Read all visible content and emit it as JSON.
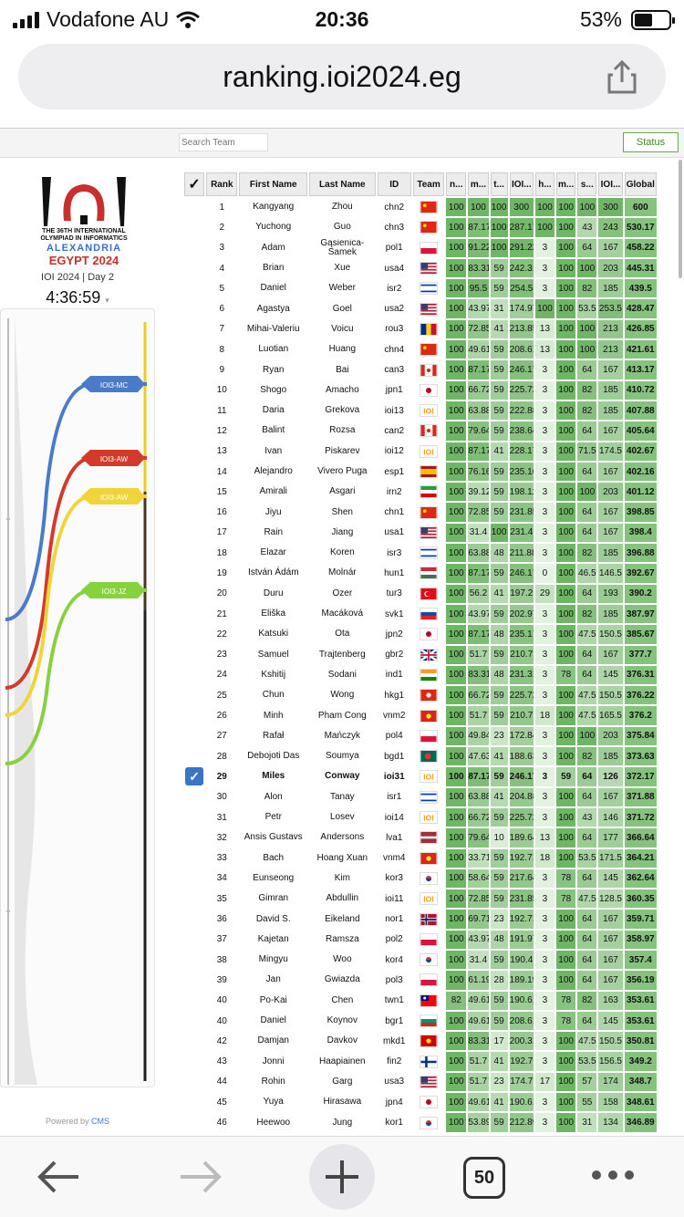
{
  "status_bar": {
    "carrier": "Vodafone AU",
    "time": "20:36",
    "battery": "53%"
  },
  "browser": {
    "url": "ranking.ioi2024.eg",
    "tab_count": "50"
  },
  "toolbar": {
    "search_placeholder": "Search Team",
    "status_button": "Status"
  },
  "sidebar": {
    "logo_lines": [
      "THE 36TH INTERNATIONAL",
      "OLYMPIAD IN INFORMATICS",
      "ALEXANDRIA",
      "EGYPT 2024"
    ],
    "day": "IOI 2024 | Day 2",
    "clock": "4:36:59",
    "graph_labels": [
      "IOI3-MC",
      "IOI3-AW",
      "IOI3-AW",
      "IOI3-JZ"
    ],
    "powered_by": "Powered by",
    "powered_brand": "CMS"
  },
  "table": {
    "headers": [
      "✓",
      "Rank",
      "First Name",
      "Last Name",
      "ID",
      "Team",
      "n...",
      "m...",
      "t...",
      "IOI...",
      "h...",
      "m...",
      "s...",
      "IOI...",
      "Global"
    ],
    "rows": [
      {
        "rank": "1",
        "first": "Kangyang",
        "last": "Zhou",
        "id": "chn2",
        "flag": "CN",
        "s": [
          "100",
          "100",
          "100",
          "300",
          "100",
          "100",
          "100",
          "300"
        ],
        "g": "600"
      },
      {
        "rank": "2",
        "first": "Yuchong",
        "last": "Guo",
        "id": "chn3",
        "flag": "CN",
        "s": [
          "100",
          "87.17",
          "100",
          "287.17",
          "100",
          "100",
          "43",
          "243"
        ],
        "g": "530.17"
      },
      {
        "rank": "3",
        "first": "Adam",
        "last": "Gąsienica-Samek",
        "id": "pol1",
        "flag": "PL",
        "s": [
          "100",
          "91.22",
          "100",
          "291.22",
          "3",
          "100",
          "64",
          "167"
        ],
        "g": "458.22"
      },
      {
        "rank": "4",
        "first": "Brian",
        "last": "Xue",
        "id": "usa4",
        "flag": "US",
        "s": [
          "100",
          "83.31",
          "59",
          "242.31",
          "3",
          "100",
          "100",
          "203"
        ],
        "g": "445.31"
      },
      {
        "rank": "5",
        "first": "Daniel",
        "last": "Weber",
        "id": "isr2",
        "flag": "IL",
        "s": [
          "100",
          "95.5",
          "59",
          "254.5",
          "3",
          "100",
          "82",
          "185"
        ],
        "g": "439.5"
      },
      {
        "rank": "6",
        "first": "Agastya",
        "last": "Goel",
        "id": "usa2",
        "flag": "US",
        "s": [
          "100",
          "43.97",
          "31",
          "174.97",
          "100",
          "100",
          "53.5",
          "253.5"
        ],
        "g": "428.47"
      },
      {
        "rank": "7",
        "first": "Mihai-Valeriu",
        "last": "Voicu",
        "id": "rou3",
        "flag": "RO",
        "s": [
          "100",
          "72.85",
          "41",
          "213.85",
          "13",
          "100",
          "100",
          "213"
        ],
        "g": "426.85"
      },
      {
        "rank": "8",
        "first": "Luotian",
        "last": "Huang",
        "id": "chn4",
        "flag": "CN",
        "s": [
          "100",
          "49.61",
          "59",
          "208.61",
          "13",
          "100",
          "100",
          "213"
        ],
        "g": "421.61"
      },
      {
        "rank": "9",
        "first": "Ryan",
        "last": "Bai",
        "id": "can3",
        "flag": "CA",
        "s": [
          "100",
          "87.17",
          "59",
          "246.17",
          "3",
          "100",
          "64",
          "167"
        ],
        "g": "413.17"
      },
      {
        "rank": "10",
        "first": "Shogo",
        "last": "Amacho",
        "id": "jpn1",
        "flag": "JP",
        "s": [
          "100",
          "66.72",
          "59",
          "225.72",
          "3",
          "100",
          "82",
          "185"
        ],
        "g": "410.72"
      },
      {
        "rank": "11",
        "first": "Daria",
        "last": "Grekova",
        "id": "ioi13",
        "flag": "IOI",
        "s": [
          "100",
          "63.88",
          "59",
          "222.88",
          "3",
          "100",
          "82",
          "185"
        ],
        "g": "407.88"
      },
      {
        "rank": "12",
        "first": "Balint",
        "last": "Rozsa",
        "id": "can2",
        "flag": "CA",
        "s": [
          "100",
          "79.64",
          "59",
          "238.64",
          "3",
          "100",
          "64",
          "167"
        ],
        "g": "405.64"
      },
      {
        "rank": "13",
        "first": "Ivan",
        "last": "Piskarev",
        "id": "ioi12",
        "flag": "IOI",
        "s": [
          "100",
          "87.17",
          "41",
          "228.17",
          "3",
          "100",
          "71.5",
          "174.5"
        ],
        "g": "402.67"
      },
      {
        "rank": "14",
        "first": "Alejandro",
        "last": "Vivero Puga",
        "id": "esp1",
        "flag": "ES",
        "s": [
          "100",
          "76.16",
          "59",
          "235.16",
          "3",
          "100",
          "64",
          "167"
        ],
        "g": "402.16"
      },
      {
        "rank": "15",
        "first": "Amirali",
        "last": "Asgari",
        "id": "irn2",
        "flag": "IR",
        "s": [
          "100",
          "39.12",
          "59",
          "198.12",
          "3",
          "100",
          "100",
          "203"
        ],
        "g": "401.12"
      },
      {
        "rank": "16",
        "first": "Jiyu",
        "last": "Shen",
        "id": "chn1",
        "flag": "CN",
        "s": [
          "100",
          "72.85",
          "59",
          "231.85",
          "3",
          "100",
          "64",
          "167"
        ],
        "g": "398.85"
      },
      {
        "rank": "17",
        "first": "Rain",
        "last": "Jiang",
        "id": "usa1",
        "flag": "US",
        "s": [
          "100",
          "31.4",
          "100",
          "231.4",
          "3",
          "100",
          "64",
          "167"
        ],
        "g": "398.4"
      },
      {
        "rank": "18",
        "first": "Elazar",
        "last": "Koren",
        "id": "isr3",
        "flag": "IL",
        "s": [
          "100",
          "63.88",
          "48",
          "211.88",
          "3",
          "100",
          "82",
          "185"
        ],
        "g": "396.88"
      },
      {
        "rank": "19",
        "first": "István Ádám",
        "last": "Molnár",
        "id": "hun1",
        "flag": "HU",
        "s": [
          "100",
          "87.17",
          "59",
          "246.17",
          "0",
          "100",
          "46.5",
          "146.5"
        ],
        "g": "392.67"
      },
      {
        "rank": "20",
        "first": "Duru",
        "last": "Ozer",
        "id": "tur3",
        "flag": "TR",
        "s": [
          "100",
          "56.2",
          "41",
          "197.2",
          "29",
          "100",
          "64",
          "193"
        ],
        "g": "390.2"
      },
      {
        "rank": "21",
        "first": "Eliška",
        "last": "Macáková",
        "id": "svk1",
        "flag": "SK",
        "s": [
          "100",
          "43.97",
          "59",
          "202.97",
          "3",
          "100",
          "82",
          "185"
        ],
        "g": "387.97"
      },
      {
        "rank": "22",
        "first": "Katsuki",
        "last": "Ota",
        "id": "jpn2",
        "flag": "JP",
        "s": [
          "100",
          "87.17",
          "48",
          "235.17",
          "3",
          "100",
          "47.5",
          "150.5"
        ],
        "g": "385.67"
      },
      {
        "rank": "23",
        "first": "Samuel",
        "last": "Trajtenberg",
        "id": "gbr2",
        "flag": "GB",
        "s": [
          "100",
          "51.7",
          "59",
          "210.7",
          "3",
          "100",
          "64",
          "167"
        ],
        "g": "377.7"
      },
      {
        "rank": "24",
        "first": "Kshitij",
        "last": "Sodani",
        "id": "ind1",
        "flag": "IN",
        "s": [
          "100",
          "83.31",
          "48",
          "231.31",
          "3",
          "78",
          "64",
          "145"
        ],
        "g": "376.31"
      },
      {
        "rank": "25",
        "first": "Chun",
        "last": "Wong",
        "id": "hkg1",
        "flag": "HK",
        "s": [
          "100",
          "66.72",
          "59",
          "225.72",
          "3",
          "100",
          "47.5",
          "150.5"
        ],
        "g": "376.22"
      },
      {
        "rank": "26",
        "first": "Minh",
        "last": "Pham Cong",
        "id": "vnm2",
        "flag": "VN",
        "s": [
          "100",
          "51.7",
          "59",
          "210.7",
          "18",
          "100",
          "47.5",
          "165.5"
        ],
        "g": "376.2"
      },
      {
        "rank": "27",
        "first": "Rafał",
        "last": "Mańczyk",
        "id": "pol4",
        "flag": "PL",
        "s": [
          "100",
          "49.84",
          "23",
          "172.84",
          "3",
          "100",
          "100",
          "203"
        ],
        "g": "375.84"
      },
      {
        "rank": "28",
        "first": "Debojoti Das",
        "last": "Soumya",
        "id": "bgd1",
        "flag": "BD",
        "s": [
          "100",
          "47.63",
          "41",
          "188.63",
          "3",
          "100",
          "82",
          "185"
        ],
        "g": "373.63"
      },
      {
        "rank": "29",
        "first": "Miles",
        "last": "Conway",
        "id": "ioi31",
        "flag": "IOI",
        "s": [
          "100",
          "87.17",
          "59",
          "246.17",
          "3",
          "59",
          "64",
          "126"
        ],
        "g": "372.17",
        "me": true
      },
      {
        "rank": "30",
        "first": "Alon",
        "last": "Tanay",
        "id": "isr1",
        "flag": "IL",
        "s": [
          "100",
          "63.88",
          "41",
          "204.88",
          "3",
          "100",
          "64",
          "167"
        ],
        "g": "371.88"
      },
      {
        "rank": "31",
        "first": "Petr",
        "last": "Losev",
        "id": "ioi14",
        "flag": "IOI",
        "s": [
          "100",
          "66.72",
          "59",
          "225.72",
          "3",
          "100",
          "43",
          "146"
        ],
        "g": "371.72"
      },
      {
        "rank": "32",
        "first": "Ansis Gustavs",
        "last": "Andersons",
        "id": "lva1",
        "flag": "LV",
        "s": [
          "100",
          "79.64",
          "10",
          "189.64",
          "13",
          "100",
          "64",
          "177"
        ],
        "g": "366.64"
      },
      {
        "rank": "33",
        "first": "Bach",
        "last": "Hoang Xuan",
        "id": "vnm4",
        "flag": "VN",
        "s": [
          "100",
          "33.71",
          "59",
          "192.71",
          "18",
          "100",
          "53.5",
          "171.5"
        ],
        "g": "364.21"
      },
      {
        "rank": "34",
        "first": "Eunseong",
        "last": "Kim",
        "id": "kor3",
        "flag": "KR",
        "s": [
          "100",
          "58.64",
          "59",
          "217.64",
          "3",
          "78",
          "64",
          "145"
        ],
        "g": "362.64"
      },
      {
        "rank": "35",
        "first": "Gimran",
        "last": "Abdullin",
        "id": "ioi11",
        "flag": "IOI",
        "s": [
          "100",
          "72.85",
          "59",
          "231.85",
          "3",
          "78",
          "47.5",
          "128.5"
        ],
        "g": "360.35"
      },
      {
        "rank": "36",
        "first": "David S.",
        "last": "Eikeland",
        "id": "nor1",
        "flag": "NO",
        "s": [
          "100",
          "69.71",
          "23",
          "192.71",
          "3",
          "100",
          "64",
          "167"
        ],
        "g": "359.71"
      },
      {
        "rank": "37",
        "first": "Kajetan",
        "last": "Ramsza",
        "id": "pol2",
        "flag": "PL",
        "s": [
          "100",
          "43.97",
          "48",
          "191.97",
          "3",
          "100",
          "64",
          "167"
        ],
        "g": "358.97"
      },
      {
        "rank": "38",
        "first": "Mingyu",
        "last": "Woo",
        "id": "kor4",
        "flag": "KR",
        "s": [
          "100",
          "31.4",
          "59",
          "190.4",
          "3",
          "100",
          "64",
          "167"
        ],
        "g": "357.4"
      },
      {
        "rank": "39",
        "first": "Jan",
        "last": "Gwiazda",
        "id": "pol3",
        "flag": "PL",
        "s": [
          "100",
          "61.19",
          "28",
          "189.19",
          "3",
          "100",
          "64",
          "167"
        ],
        "g": "356.19"
      },
      {
        "rank": "40",
        "first": "Po-Kai",
        "last": "Chen",
        "id": "twn1",
        "flag": "TW",
        "s": [
          "82",
          "49.61",
          "59",
          "190.61",
          "3",
          "78",
          "82",
          "163"
        ],
        "g": "353.61"
      },
      {
        "rank": "40",
        "first": "Daniel",
        "last": "Koynov",
        "id": "bgr1",
        "flag": "BG",
        "s": [
          "100",
          "49.61",
          "59",
          "208.61",
          "3",
          "78",
          "64",
          "145"
        ],
        "g": "353.61"
      },
      {
        "rank": "42",
        "first": "Damjan",
        "last": "Davkov",
        "id": "mkd1",
        "flag": "MK",
        "s": [
          "100",
          "83.31",
          "17",
          "200.31",
          "3",
          "100",
          "47.5",
          "150.5"
        ],
        "g": "350.81"
      },
      {
        "rank": "43",
        "first": "Jonni",
        "last": "Haapiainen",
        "id": "fin2",
        "flag": "FI",
        "s": [
          "100",
          "51.7",
          "41",
          "192.7",
          "3",
          "100",
          "53.5",
          "156.5"
        ],
        "g": "349.2"
      },
      {
        "rank": "44",
        "first": "Rohin",
        "last": "Garg",
        "id": "usa3",
        "flag": "US",
        "s": [
          "100",
          "51.7",
          "23",
          "174.7",
          "17",
          "100",
          "57",
          "174"
        ],
        "g": "348.7"
      },
      {
        "rank": "45",
        "first": "Yuya",
        "last": "Hirasawa",
        "id": "jpn4",
        "flag": "JP",
        "s": [
          "100",
          "49.61",
          "41",
          "190.61",
          "3",
          "100",
          "55",
          "158"
        ],
        "g": "348.61"
      },
      {
        "rank": "46",
        "first": "Heewoo",
        "last": "Jung",
        "id": "kor1",
        "flag": "KR",
        "s": [
          "100",
          "53.89",
          "59",
          "212.89",
          "3",
          "100",
          "31",
          "134"
        ],
        "g": "346.89"
      }
    ]
  },
  "colors": {
    "score_high": "#6fb566",
    "score_low": "#e7f3e4",
    "accent": "#3b73c7"
  }
}
